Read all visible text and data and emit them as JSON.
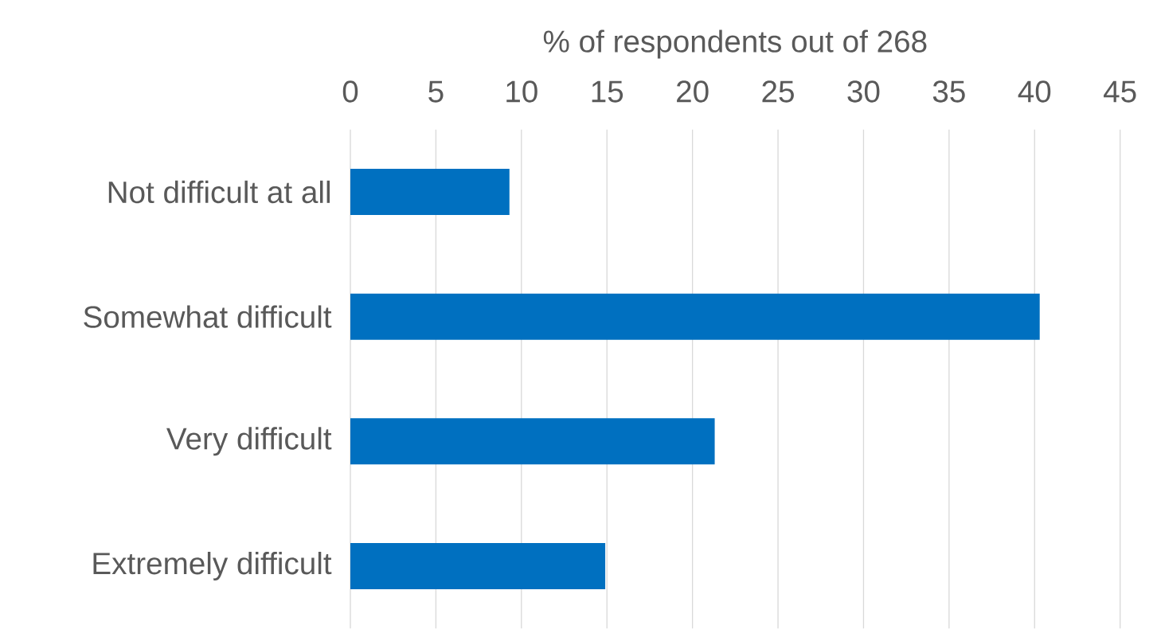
{
  "chart_data": {
    "type": "bar",
    "orientation": "horizontal",
    "xlabel": "% of respondents out of 268",
    "categories": [
      "Not difficult at all",
      "Somewhat difficult",
      "Very difficult",
      "Extremely difficult"
    ],
    "values": [
      9.3,
      40.3,
      21.3,
      14.9
    ],
    "color": "#0070c0",
    "xlim": [
      0,
      45
    ],
    "xticks": [
      0,
      5,
      10,
      15,
      20,
      25,
      30,
      35,
      40,
      45
    ],
    "grid": "x"
  }
}
